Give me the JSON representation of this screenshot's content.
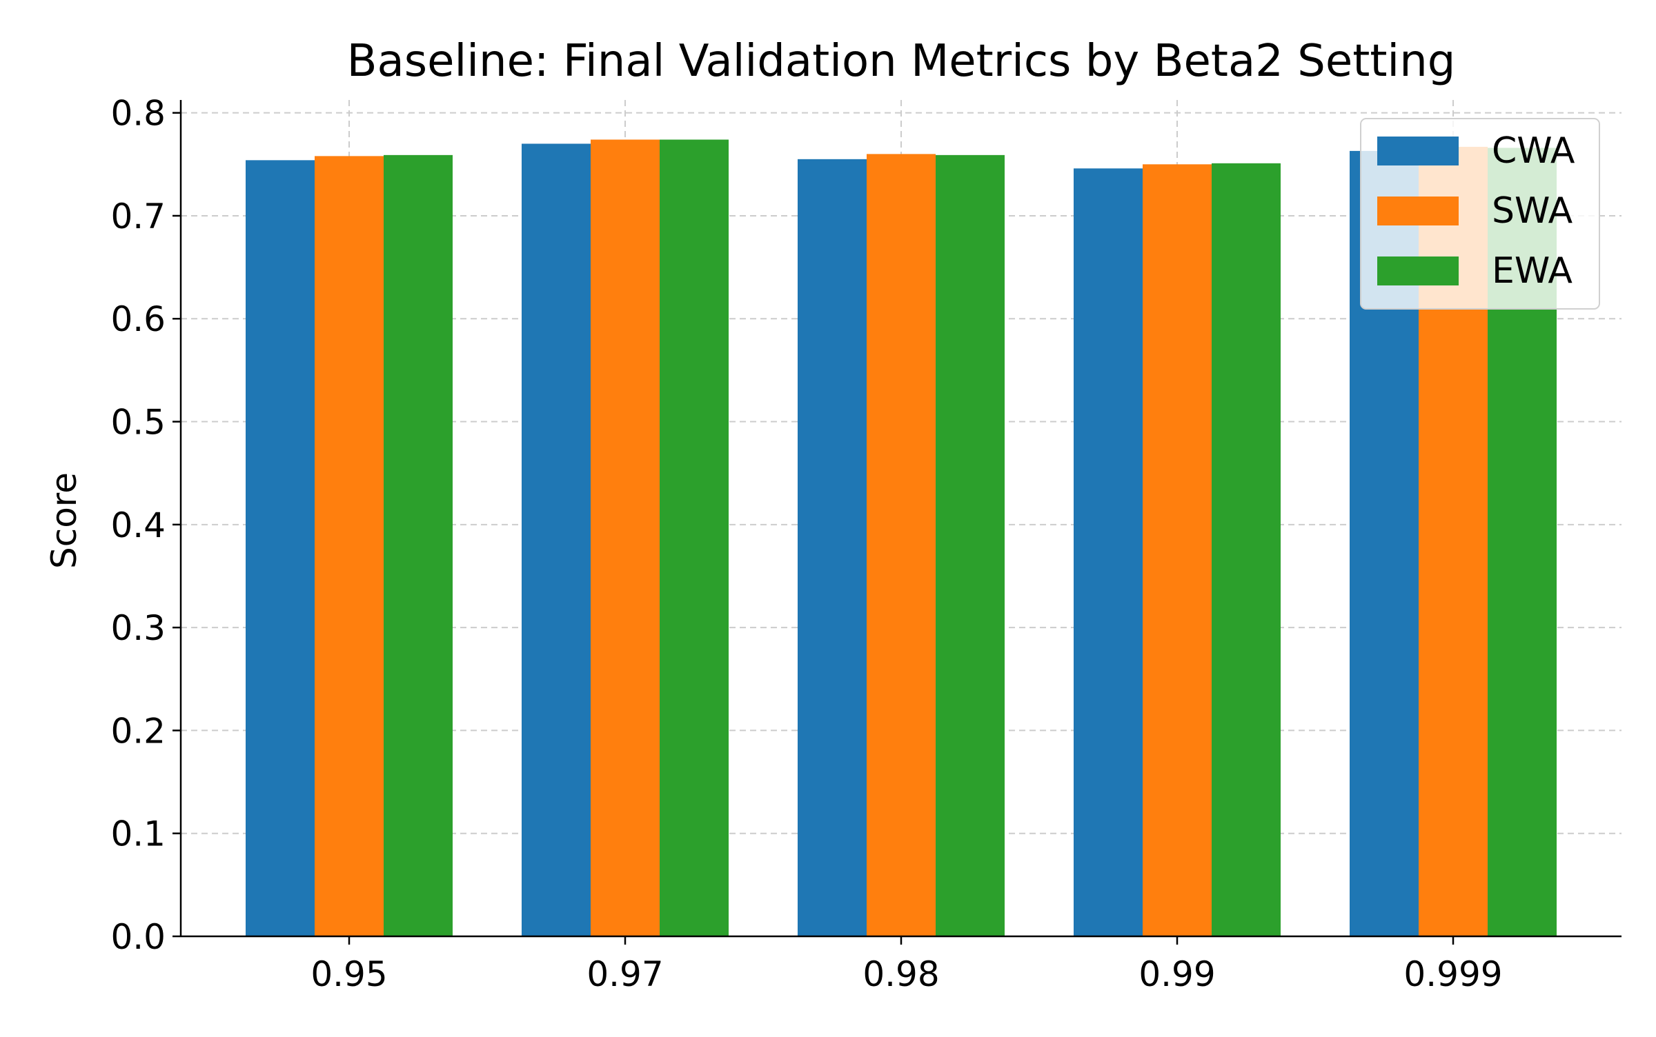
{
  "chart_data": {
    "type": "bar",
    "title": "Baseline: Final Validation Metrics by Beta2 Setting",
    "xlabel": "",
    "ylabel": "Score",
    "categories": [
      "0.95",
      "0.97",
      "0.98",
      "0.99",
      "0.999"
    ],
    "series": [
      {
        "name": "CWA",
        "color": "#1f77b4",
        "values": [
          0.754,
          0.77,
          0.755,
          0.746,
          0.763
        ]
      },
      {
        "name": "SWA",
        "color": "#ff7f0e",
        "values": [
          0.758,
          0.774,
          0.76,
          0.75,
          0.767
        ]
      },
      {
        "name": "EWA",
        "color": "#2ca02c",
        "values": [
          0.759,
          0.774,
          0.759,
          0.751,
          0.766
        ]
      }
    ],
    "ylim": [
      0,
      0.8125
    ],
    "yticks": [
      "0.0",
      "0.1",
      "0.2",
      "0.3",
      "0.4",
      "0.5",
      "0.6",
      "0.7",
      "0.8"
    ],
    "grid": true,
    "legend_position": "top-right"
  }
}
